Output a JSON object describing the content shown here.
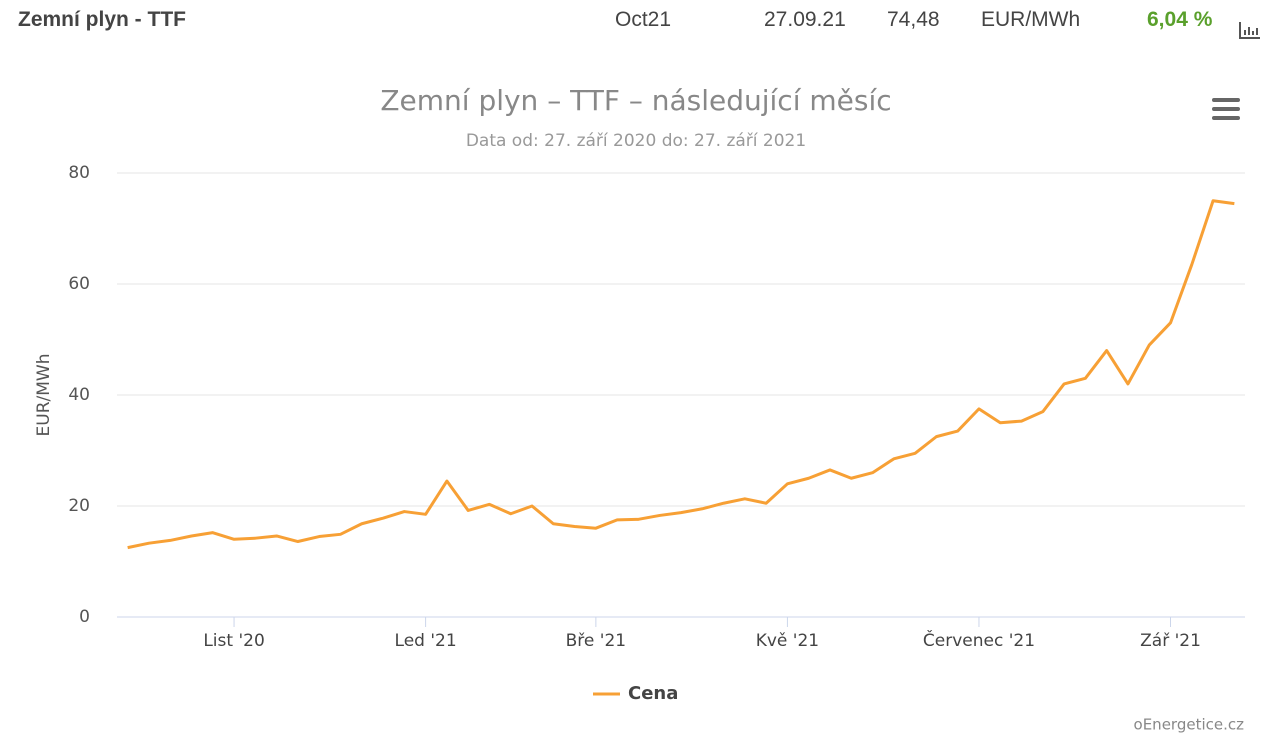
{
  "header": {
    "title": "Zemní plyn - TTF",
    "contract": "Oct21",
    "date": "27.09.21",
    "price": "74,48",
    "unit": "EUR/MWh",
    "change": "6,04 %"
  },
  "chart_data": {
    "type": "line",
    "title": "Zemní plyn – TTF – následující měsíc",
    "subtitle": "Data od: 27. září 2020 do: 27. září 2021",
    "y_label": "EUR/MWh",
    "credit": "oEnergetice.cz",
    "categories": [
      null,
      null,
      null,
      null,
      null,
      "List '20",
      null,
      null,
      null,
      null,
      null,
      null,
      null,
      null,
      "Led '21",
      null,
      null,
      null,
      null,
      null,
      null,
      null,
      "Bře '21",
      null,
      null,
      null,
      null,
      null,
      null,
      null,
      null,
      "Kvě '21",
      null,
      null,
      null,
      null,
      null,
      null,
      null,
      null,
      "Červenec '21",
      null,
      null,
      null,
      null,
      null,
      null,
      null,
      null,
      "Zář '21",
      null,
      null,
      null
    ],
    "series": [
      {
        "name": "Cena",
        "color": "#f7a035",
        "values": [
          12.5,
          13.3,
          13.8,
          14.6,
          15.2,
          14.0,
          14.2,
          14.6,
          13.6,
          14.5,
          14.9,
          16.8,
          17.8,
          19.0,
          18.5,
          24.5,
          19.2,
          20.3,
          18.6,
          20.0,
          16.8,
          16.3,
          16.0,
          17.5,
          17.6,
          18.3,
          18.8,
          19.5,
          20.5,
          21.3,
          20.5,
          24.0,
          25.0,
          26.5,
          25.0,
          26.0,
          28.5,
          29.5,
          32.5,
          33.5,
          37.5,
          35.0,
          35.3,
          37.0,
          42.0,
          43.0,
          48.0,
          42.0,
          49.0,
          53.0,
          63.5,
          75.0,
          74.48
        ]
      }
    ],
    "ylim": [
      0,
      80
    ],
    "yticks": [
      0,
      20,
      40,
      60,
      80
    ],
    "grid": true
  }
}
